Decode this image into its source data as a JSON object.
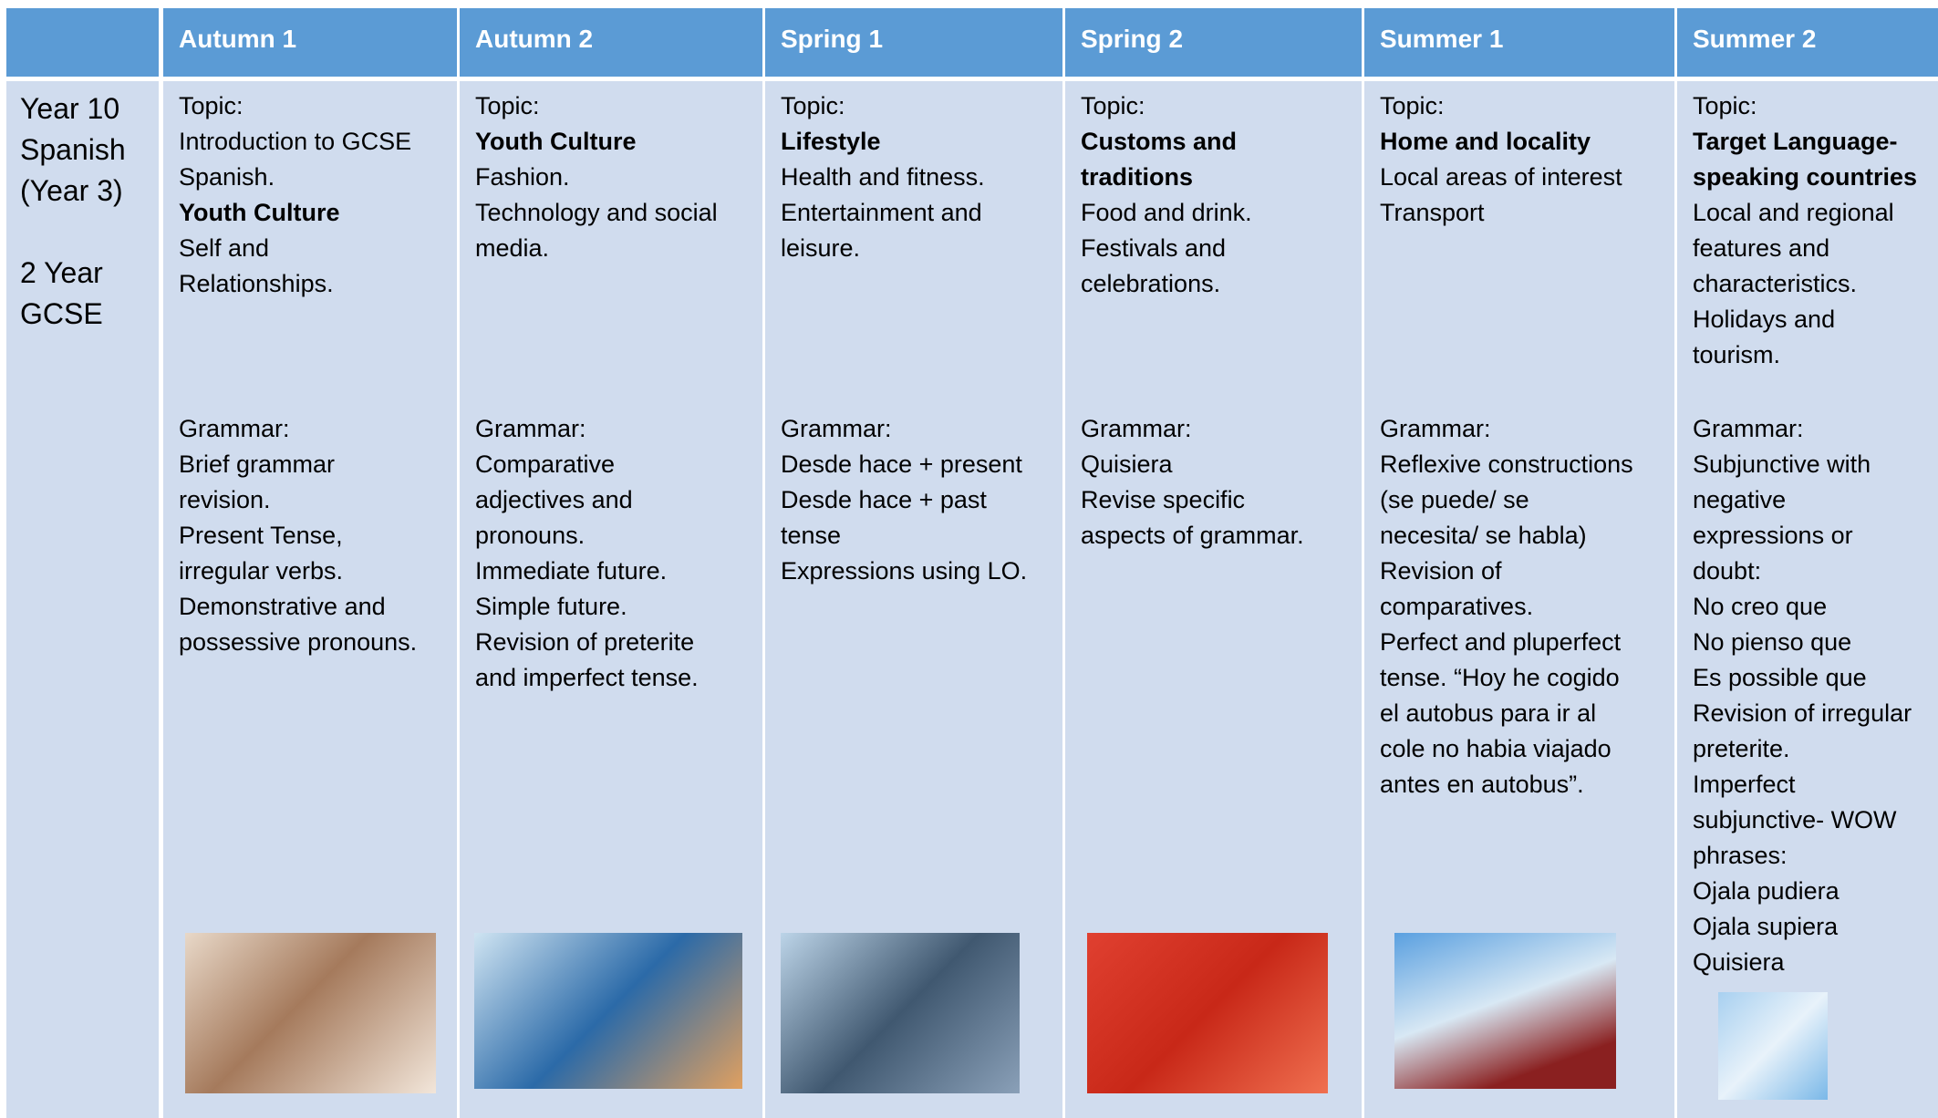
{
  "table": {
    "header": [
      "Autumn 1",
      "Autumn 2",
      "Spring 1",
      "Spring 2",
      "Summer 1",
      "Summer 2"
    ],
    "row_label": {
      "lines_1": [
        "Year 10",
        "Spanish",
        "(Year 3)"
      ],
      "lines_2": [
        "2 Year",
        "GCSE"
      ]
    },
    "columns": [
      {
        "topic": [
          {
            "text": "Topic:"
          },
          {
            "text": "Introduction to GCSE"
          },
          {
            "text": "Spanish."
          },
          {
            "text": "Youth Culture",
            "bold": true
          },
          {
            "text": "Self and"
          },
          {
            "text": "Relationships."
          }
        ],
        "grammar": [
          {
            "text": "Grammar:"
          },
          {
            "text": "Brief grammar"
          },
          {
            "text": "revision."
          },
          {
            "text": "Present Tense,"
          },
          {
            "text": "irregular verbs."
          },
          {
            "text": "Demonstrative and"
          },
          {
            "text": "possessive pronouns."
          }
        ]
      },
      {
        "topic": [
          {
            "text": "Topic:"
          },
          {
            "text": "Youth Culture",
            "bold": true
          },
          {
            "text": "Fashion."
          },
          {
            "text": "Technology and social"
          },
          {
            "text": "media."
          }
        ],
        "grammar": [
          {
            "text": "Grammar:"
          },
          {
            "text": "Comparative"
          },
          {
            "text": "adjectives and"
          },
          {
            "text": "pronouns."
          },
          {
            "text": "Immediate future."
          },
          {
            "text": "Simple future."
          },
          {
            "text": "Revision of preterite"
          },
          {
            "text": "and imperfect tense."
          }
        ]
      },
      {
        "topic": [
          {
            "text": "Topic:"
          },
          {
            "text": "Lifestyle",
            "bold": true
          },
          {
            "text": "Health and fitness."
          },
          {
            "text": "Entertainment and"
          },
          {
            "text": "leisure."
          }
        ],
        "grammar": [
          {
            "text": "Grammar:"
          },
          {
            "text": "Desde hace + present"
          },
          {
            "text": "Desde hace + past"
          },
          {
            "text": "tense"
          },
          {
            "text": "Expressions using LO."
          }
        ]
      },
      {
        "topic": [
          {
            "text": "Topic:"
          },
          {
            "text": "Customs and",
            "bold": true
          },
          {
            "text": "traditions",
            "bold": true
          },
          {
            "text": "Food and drink."
          },
          {
            "text": "Festivals and"
          },
          {
            "text": "celebrations."
          }
        ],
        "grammar": [
          {
            "text": "Grammar:"
          },
          {
            "text": "Quisiera"
          },
          {
            "text": "Revise specific"
          },
          {
            "text": "aspects of grammar."
          }
        ]
      },
      {
        "topic": [
          {
            "text": "Topic:"
          },
          {
            "text": "Home and locality",
            "bold": true
          },
          {
            "text": "Local areas of interest"
          },
          {
            "text": "Transport"
          }
        ],
        "grammar": [
          {
            "text": "Grammar:"
          },
          {
            "text": "Reflexive constructions"
          },
          {
            "text": "(se puede/ se"
          },
          {
            "text": "necesita/ se habla)"
          },
          {
            "text": "Revision of"
          },
          {
            "text": "comparatives."
          },
          {
            "text": "Perfect and pluperfect"
          },
          {
            "text": "tense. “Hoy he cogido"
          },
          {
            "text": "el autobus para ir al"
          },
          {
            "text": "cole no habia viajado"
          },
          {
            "text": "antes en autobus”."
          }
        ]
      },
      {
        "topic": [
          {
            "text": "Topic:"
          },
          {
            "text": "Target Language-",
            "bold": true
          },
          {
            "text": "speaking countries",
            "bold": true
          },
          {
            "text": "Local and regional"
          },
          {
            "text": "features and"
          },
          {
            "text": "characteristics."
          },
          {
            "text": "Holidays and"
          },
          {
            "text": "tourism."
          }
        ],
        "grammar": [
          {
            "text": "Grammar:"
          },
          {
            "text": "Subjunctive with"
          },
          {
            "text": "negative"
          },
          {
            "text": "expressions or"
          },
          {
            "text": "doubt:"
          },
          {
            "text": "No creo que"
          },
          {
            "text": "No pienso que"
          },
          {
            "text": "Es possible que"
          },
          {
            "text": "Revision of irregular"
          },
          {
            "text": "preterite."
          },
          {
            "text": "Imperfect"
          },
          {
            "text": "subjunctive- WOW"
          },
          {
            "text": "phrases:"
          },
          {
            "text": "Ojala pudiera"
          },
          {
            "text": "Ojala supiera"
          },
          {
            "text": "Quisiera"
          }
        ]
      }
    ]
  }
}
